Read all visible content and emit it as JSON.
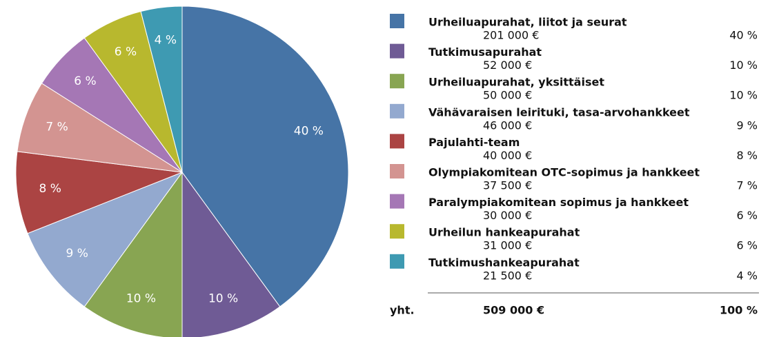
{
  "chart_data": {
    "type": "pie",
    "categories": [
      "Urheiluapurahat, liitot ja seurat",
      "Tutkimusapurahat",
      "Urheiluapurahat, yksittäiset",
      "Vähävaraisen leirituki, tasa-arvohankkeet",
      "Pajulahti-team",
      "Olympiakomitean OTC-sopimus ja hankkeet",
      "Paralympiakomitean sopimus ja hankkeet",
      "Urheilun hankeapurahat",
      "Tutkimushankeapurahat"
    ],
    "values": [
      40,
      10,
      10,
      9,
      8,
      7,
      6,
      6,
      4
    ],
    "value_labels": [
      "40 %",
      "10 %",
      "10 %",
      "9 %",
      "8 %",
      "7 %",
      "6 %",
      "6 %",
      "4 %"
    ],
    "amounts": [
      "201 000 €",
      "52 000 €",
      "50 000 €",
      "46 000 €",
      "40 000 €",
      "37 500 €",
      "30 000 €",
      "31 000 €",
      "21 500 €"
    ],
    "colors": [
      "#4674a6",
      "#6f5b95",
      "#88a552",
      "#93a9cf",
      "#ab4443",
      "#d39491",
      "#a577b5",
      "#b8b82e",
      "#3e9ab2"
    ],
    "total": {
      "label": "yht.",
      "amount": "509 000 €",
      "percent": "100 %"
    }
  }
}
